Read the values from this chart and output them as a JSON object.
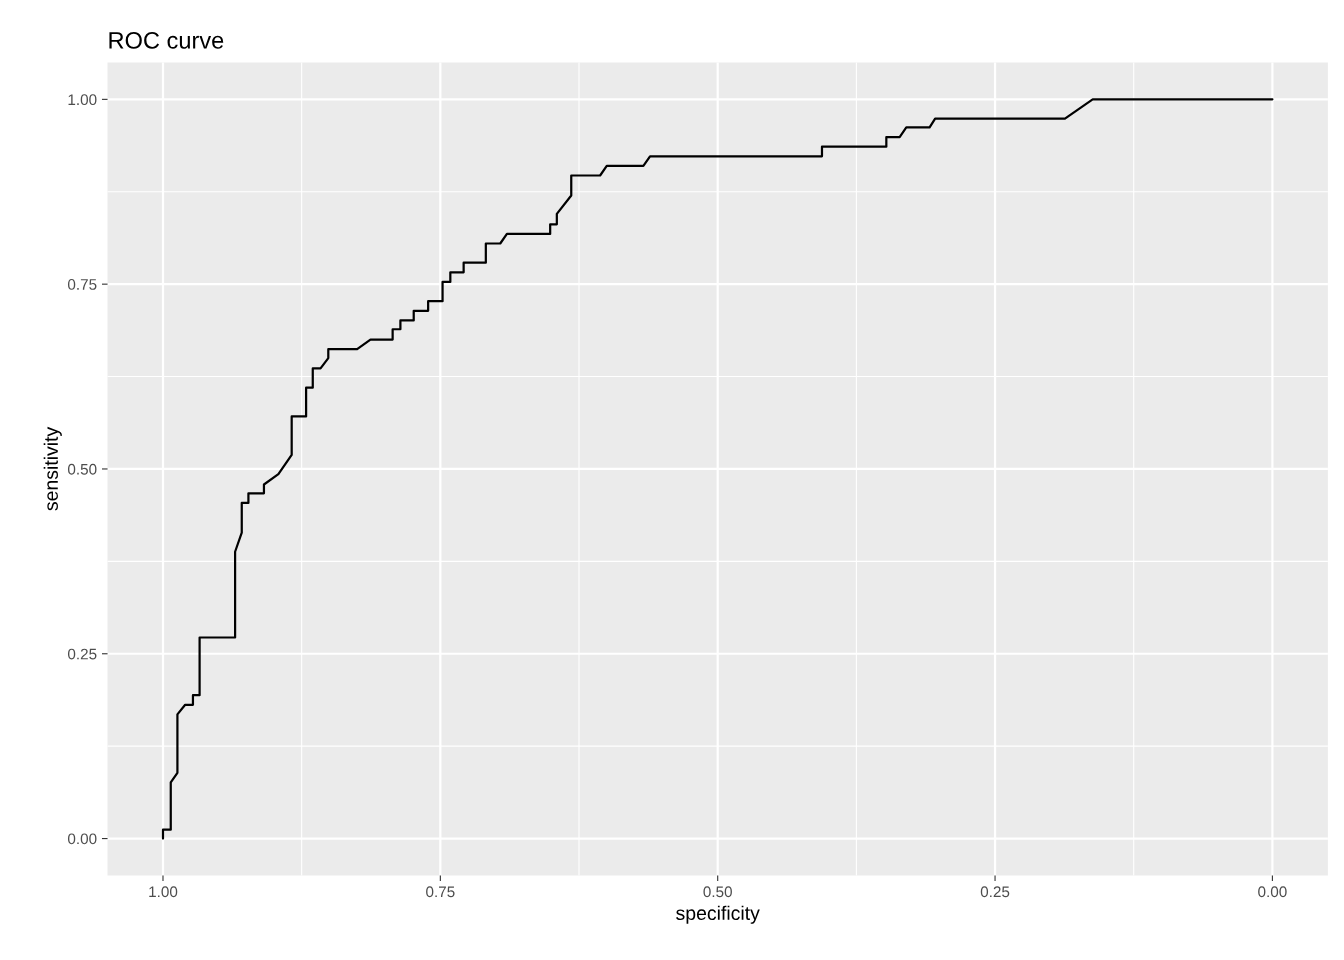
{
  "chart_data": {
    "type": "line",
    "title": "ROC curve",
    "xlabel": "specificity",
    "ylabel": "sensitivity",
    "xlim": [
      1.05,
      -0.05
    ],
    "ylim": [
      -0.05,
      1.05
    ],
    "xticks": [
      {
        "value": 1,
        "label": "1.00"
      },
      {
        "value": 0.75,
        "label": "0.75"
      },
      {
        "value": 0.5,
        "label": "0.50"
      },
      {
        "value": 0.25,
        "label": "0.25"
      },
      {
        "value": 0,
        "label": "0.00"
      }
    ],
    "yticks": [
      {
        "value": 0,
        "label": "0.00"
      },
      {
        "value": 0.25,
        "label": "0.25"
      },
      {
        "value": 0.5,
        "label": "0.50"
      },
      {
        "value": 0.75,
        "label": "0.75"
      },
      {
        "value": 1,
        "label": "1.00"
      }
    ],
    "grid": true,
    "line_style": "solid",
    "series": [
      {
        "color": "#000000",
        "x": [
          1.0,
          1.0,
          0.993,
          0.993,
          0.987,
          0.987,
          0.98,
          0.973,
          0.973,
          0.967,
          0.967,
          0.935,
          0.935,
          0.929,
          0.929,
          0.923,
          0.923,
          0.909,
          0.909,
          0.896,
          0.884,
          0.884,
          0.871,
          0.871,
          0.865,
          0.865,
          0.858,
          0.851,
          0.851,
          0.825,
          0.813,
          0.793,
          0.793,
          0.786,
          0.786,
          0.774,
          0.774,
          0.761,
          0.761,
          0.748,
          0.748,
          0.741,
          0.741,
          0.729,
          0.729,
          0.709,
          0.709,
          0.696,
          0.69,
          0.651,
          0.651,
          0.645,
          0.645,
          0.632,
          0.632,
          0.606,
          0.6,
          0.567,
          0.561,
          0.406,
          0.406,
          0.348,
          0.348,
          0.336,
          0.33,
          0.309,
          0.304,
          0.187,
          0.162,
          0.0
        ],
        "values": [
          0.0,
          0.012,
          0.012,
          0.076,
          0.089,
          0.168,
          0.181,
          0.181,
          0.194,
          0.194,
          0.272,
          0.272,
          0.388,
          0.414,
          0.454,
          0.454,
          0.467,
          0.467,
          0.479,
          0.493,
          0.519,
          0.571,
          0.571,
          0.61,
          0.61,
          0.636,
          0.636,
          0.65,
          0.662,
          0.662,
          0.675,
          0.675,
          0.689,
          0.689,
          0.701,
          0.701,
          0.714,
          0.714,
          0.727,
          0.727,
          0.753,
          0.753,
          0.766,
          0.766,
          0.779,
          0.779,
          0.805,
          0.805,
          0.818,
          0.818,
          0.831,
          0.831,
          0.845,
          0.87,
          0.897,
          0.897,
          0.91,
          0.91,
          0.923,
          0.923,
          0.936,
          0.936,
          0.949,
          0.949,
          0.962,
          0.962,
          0.974,
          0.974,
          1.0,
          1.0
        ]
      }
    ]
  }
}
